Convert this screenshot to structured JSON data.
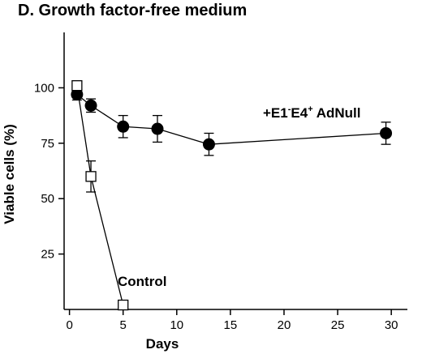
{
  "chart_data": {
    "type": "line",
    "title": "D. Growth factor-free medium",
    "xlabel": "Days",
    "ylabel": "Viable cells (%)",
    "xlim": [
      -0.5,
      31.5
    ],
    "ylim": [
      0,
      125
    ],
    "x_ticks": [
      0,
      5,
      10,
      15,
      20,
      25,
      30
    ],
    "y_ticks": [
      25,
      50,
      75,
      100
    ],
    "series": [
      {
        "name": "+E1⁻E4⁺ AdNull",
        "label_parts": {
          "a": "+E1",
          "sup1": "-",
          "b": "E4",
          "sup2": "+",
          "c": " AdNull"
        },
        "marker": "filled-circle",
        "x": [
          0.7,
          2,
          5,
          8.2,
          13,
          29.5
        ],
        "y": [
          97,
          92,
          82.5,
          81.5,
          74.5,
          79.5
        ],
        "err": [
          2.5,
          3,
          5,
          6,
          5,
          5
        ]
      },
      {
        "name": "Control",
        "label_parts": {
          "a": "Control"
        },
        "marker": "open-square",
        "x": [
          0.7,
          2,
          5
        ],
        "y": [
          101,
          60,
          2
        ],
        "err": [
          0,
          7,
          0
        ]
      }
    ]
  }
}
